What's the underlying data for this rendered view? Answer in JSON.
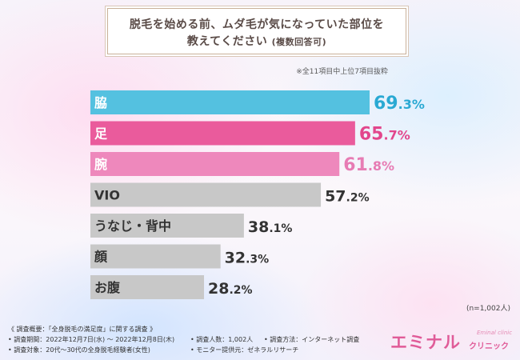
{
  "title": {
    "line1": "脱毛を始める前、ムダ毛が気になっていた部位を",
    "line2": "教えてください",
    "line2_small": "(複数回答可)"
  },
  "subnote": "※全11項目中上位7項目抜粋",
  "sample_size": "(n=1,002人)",
  "chart_data": {
    "type": "bar",
    "orientation": "horizontal",
    "categories": [
      "脇",
      "足",
      "腕",
      "VIO",
      "うなじ・背中",
      "顔",
      "お腹"
    ],
    "values": [
      69.3,
      65.7,
      61.8,
      57.2,
      38.1,
      32.3,
      28.2
    ],
    "unit": "%",
    "colors": [
      "#54c1e0",
      "#ea5b9c",
      "#ee88bc",
      "#c8c8c8",
      "#c8c8c8",
      "#c8c8c8",
      "#c8c8c8"
    ],
    "value_colors": [
      "#2aa9d3",
      "#e2468c",
      "#e77cb4",
      "#333333",
      "#333333",
      "#333333",
      "#333333"
    ],
    "xlim": [
      0,
      100
    ],
    "grid": false
  },
  "footer": {
    "survey_overview": "《 調査概要：「全身脱毛の満足度」に関する調査 》",
    "period": "• 調査期間：2022年12月7日(水) 〜 2022年12月8日(木)",
    "respondents": "• 調査人数：1,002人",
    "method": "• 調査方法：インターネット調査",
    "target": "• 調査対象：20代〜30代の全身脱毛経験者(女性)",
    "provider": "• モニター提供元：ゼネラルリサーチ"
  },
  "logo": {
    "main": "エミナル",
    "sub": "クリニック",
    "script": "Eminal clinic"
  }
}
